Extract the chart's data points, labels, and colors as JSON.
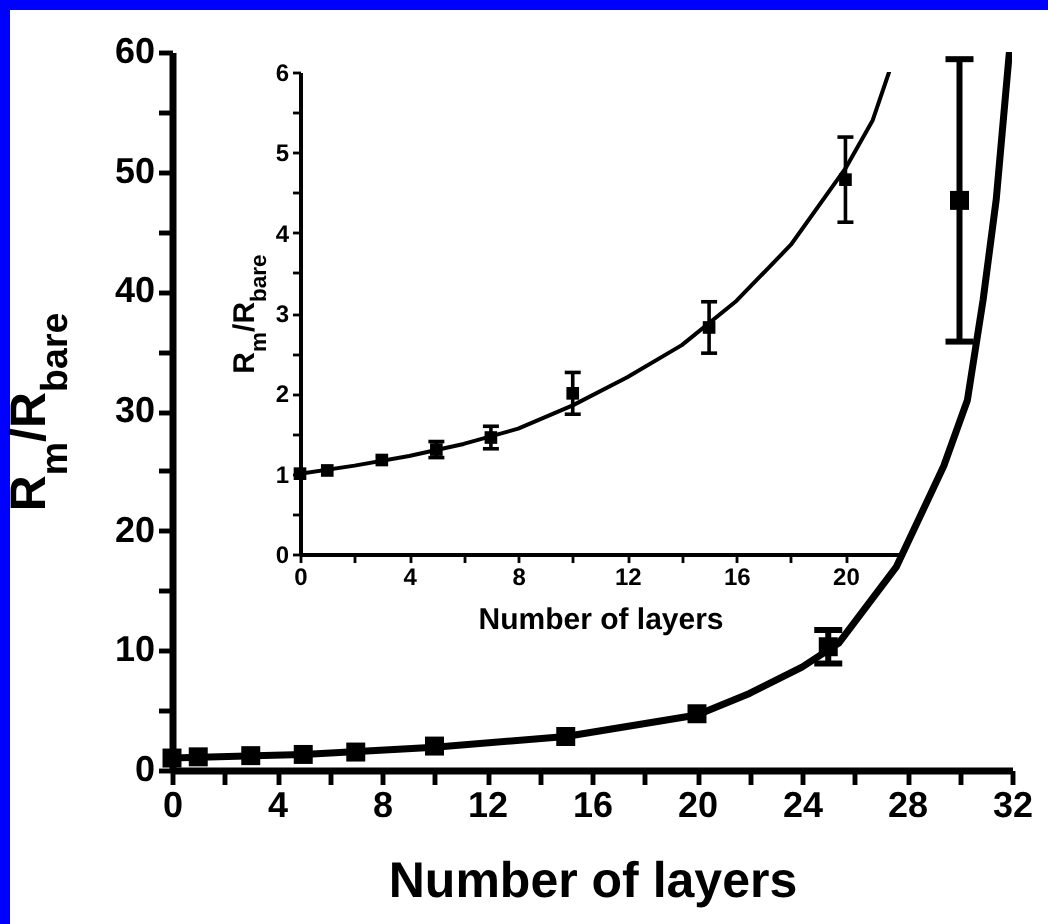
{
  "chart_data": [
    {
      "type": "scatter",
      "xlabel": "Number of layers",
      "ylabel": "R$_{m}$/R$_{bare}$",
      "xlim": [
        0,
        32
      ],
      "ylim": [
        0,
        60
      ],
      "grid": false,
      "xticks": [
        0,
        {
          "value": 2,
          "label": null
        },
        4,
        {
          "value": 6,
          "label": null
        },
        8,
        {
          "value": 10,
          "label": null
        },
        12,
        {
          "value": 14,
          "label": null
        },
        16,
        {
          "value": 18,
          "label": null
        },
        20,
        {
          "value": 22,
          "label": null
        },
        24,
        {
          "value": 26,
          "label": null
        },
        28,
        {
          "value": 30,
          "label": null
        },
        32
      ],
      "yticks": [
        0,
        {
          "value": 5,
          "label": null
        },
        10,
        {
          "value": 15,
          "label": null
        },
        20,
        {
          "value": 25,
          "label": null
        },
        30,
        {
          "value": 35,
          "label": null
        },
        40,
        {
          "value": 45,
          "label": null
        },
        50,
        {
          "value": 55,
          "label": null
        },
        60
      ],
      "series": [
        {
          "marker": "square",
          "color": "#000000",
          "x": [
            0,
            1,
            3,
            5,
            7,
            10,
            15,
            20,
            25,
            30
          ],
          "values": [
            1,
            1.1,
            1.2,
            1.3,
            1.5,
            2.0,
            2.8,
            4.7,
            10.3,
            47.6
          ],
          "errors": [
            null,
            null,
            null,
            null,
            null,
            null,
            null,
            null,
            1.4,
            11.8
          ]
        },
        {
          "type": "line",
          "marker": "none",
          "color": "#000000",
          "x": [
            0,
            5,
            10,
            15,
            20,
            22,
            24,
            25.4,
            27.6,
            29.4,
            30.3,
            30.9,
            31.4,
            31.9
          ],
          "values": [
            1,
            1.3,
            1.9,
            2.8,
            4.6,
            6.4,
            8.6,
            10.6,
            17,
            25.4,
            30.9,
            39.3,
            47.7,
            60
          ]
        }
      ]
    },
    {
      "type": "scatter",
      "xlabel": "Number of layers",
      "ylabel": "R$_{m}$/R$_{bare}$",
      "xlim": [
        0,
        22
      ],
      "ylim": [
        0,
        6
      ],
      "grid": false,
      "xticks": [
        0,
        {
          "value": 2,
          "label": null
        },
        4,
        {
          "value": 6,
          "label": null
        },
        8,
        {
          "value": 10,
          "label": null
        },
        12,
        {
          "value": 14,
          "label": null
        },
        16,
        {
          "value": 18,
          "label": null
        },
        20
      ],
      "yticks": [
        0,
        {
          "value": 0.5,
          "label": null
        },
        1,
        {
          "value": 1.5,
          "label": null
        },
        2,
        {
          "value": 2.5,
          "label": null
        },
        3,
        {
          "value": 3.5,
          "label": null
        },
        4,
        {
          "value": 4.5,
          "label": null
        },
        5,
        {
          "value": 5.5,
          "label": null
        },
        6
      ],
      "series": [
        {
          "marker": "square",
          "color": "#000000",
          "x": [
            0,
            1,
            3,
            5,
            7,
            10,
            15,
            20
          ],
          "values": [
            1.0,
            1.04,
            1.17,
            1.3,
            1.45,
            2.0,
            2.82,
            4.66
          ],
          "errors": [
            null,
            null,
            null,
            0.1,
            0.14,
            0.26,
            0.32,
            0.53
          ]
        },
        {
          "type": "line",
          "marker": "none",
          "color": "#000000",
          "x": [
            0,
            2,
            4,
            6,
            8,
            10,
            12,
            14,
            16,
            18,
            20,
            21,
            21.6
          ],
          "values": [
            1,
            1.1,
            1.22,
            1.37,
            1.56,
            1.85,
            2.2,
            2.6,
            3.15,
            3.85,
            4.8,
            5.4,
            6
          ]
        }
      ]
    }
  ]
}
